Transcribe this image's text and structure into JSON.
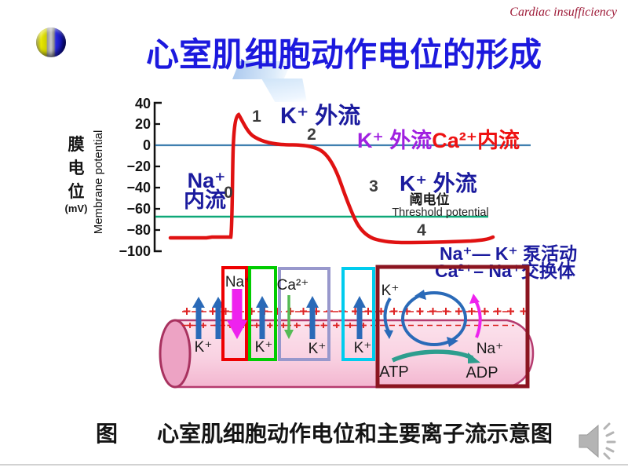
{
  "slide": {
    "corner_label": "Cardiac insufficiency",
    "title": "心室肌细胞动作电位的形成",
    "caption_fig": "图",
    "caption_text": "心室肌细胞动作电位和主要离子流示意图"
  },
  "graph": {
    "y_axis_cn_1": "膜",
    "y_axis_cn_2": "电",
    "y_axis_cn_3": "位",
    "y_axis_unit": "(mV)",
    "y_axis_en": "Membrane potential",
    "yticks": [
      "40",
      "20",
      "0",
      "−20",
      "−40",
      "−60",
      "−80",
      "−100"
    ],
    "phase0": "0",
    "phase1": "1",
    "phase2": "2",
    "phase3": "3",
    "phase4": "4",
    "label_k_efflux_1": "K⁺ 外流",
    "label_k_efflux_2a": "K⁺ 外流",
    "label_ca_influx_2b": "Ca²⁺内流",
    "label_na_line1": "Na⁺",
    "label_na_line2": "内流",
    "label_k_efflux_3": "K⁺ 外流",
    "label_threshold_cn": "阈电位",
    "label_threshold_en": "Threshold potential",
    "label_pump_line1": "Na⁺— K⁺ 泵活动",
    "label_pump_line2": "Ca²⁺– Na⁺交换体"
  },
  "membrane": {
    "k_out_left": "K⁺",
    "na_channel_ion": "Na⁺",
    "k_channel_1_ion": "K⁺",
    "ca_channel_ion": "Ca²⁺",
    "k_channel_2_ion": "K⁺",
    "k_channel_3_ion": "K⁺",
    "pump_k_ion": "K⁺",
    "pump_na_ion": "Na⁺",
    "atp_label": "ATP",
    "adp_label": "ADP"
  },
  "colors": {
    "title_blue": "#1c19de",
    "corner_red": "#9e1b38",
    "ion_label_navy": "#1b1b9e",
    "k_efflux_purple": "#a020e0",
    "ca_influx_red": "#ee1111",
    "curve_red": "#e01212",
    "zero_line_blue": "#4080b0",
    "threshold_line_green": "#0ea878",
    "phase_number_gray": "#3c3c3c",
    "na_channel_box": "#ee0000",
    "k_channel_box_green": "#00cc00",
    "ca_channel_box_purple": "#9898cc",
    "k_channel_box_cyan": "#00ccee",
    "pump_box_darkred": "#8b1520",
    "membrane_pink": "#f6c3d8",
    "arrow_blue": "#2a6ab8",
    "arrow_magenta": "#ee22ee",
    "arrow_green": "#55bb55",
    "arrow_teal": "#2d9e8e"
  },
  "chart_data": {
    "type": "line",
    "ylabel": "膜电位 Membrane potential (mV)",
    "yticks": [
      40,
      20,
      0,
      -20,
      -40,
      -60,
      -80,
      -100
    ],
    "ylim": [
      -100,
      40
    ],
    "reference_lines": {
      "zero_mV": 0,
      "threshold_mV": -67,
      "resting_mV": -88
    },
    "peak_mV": 30,
    "grid": false,
    "phases": [
      {
        "phase": "0",
        "ion_flow": "Na⁺内流"
      },
      {
        "phase": "1",
        "ion_flow": "K⁺ 外流"
      },
      {
        "phase": "2",
        "ion_flow": "K⁺ 外流 + Ca²⁺内流"
      },
      {
        "phase": "3",
        "ion_flow": "K⁺ 外流"
      },
      {
        "phase": "4",
        "ion_flow": "Na⁺—K⁺ 泵活动, Ca²⁺–Na⁺交换体"
      }
    ]
  }
}
